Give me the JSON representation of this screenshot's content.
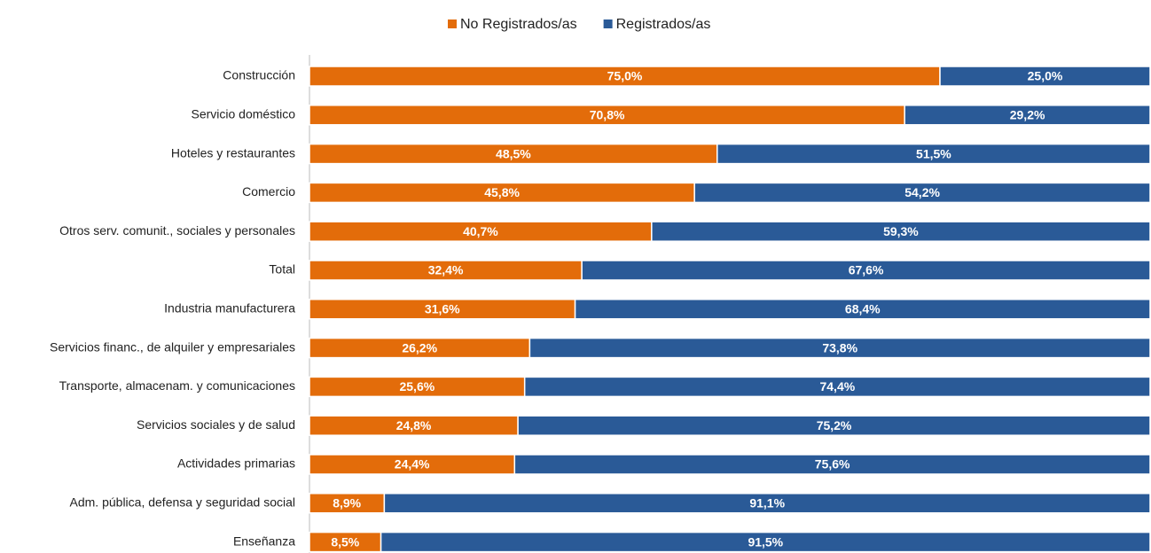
{
  "chart_data": {
    "type": "stacked-bar-horizontal",
    "categories": [
      "Construcción",
      "Servicio doméstico",
      "Hoteles y restaurantes",
      "Comercio",
      "Otros serv. comunit., sociales y personales",
      "Total",
      "Industria manufacturera",
      "Servicios financ., de alquiler y empresariales",
      "Transporte, almacenam. y comunicaciones",
      "Servicios sociales y de salud",
      "Actividades primarias",
      "Adm. pública, defensa y seguridad social",
      "Enseñanza"
    ],
    "series": [
      {
        "name": "No Registrados/as",
        "color": "#e36c0a",
        "values": [
          75.0,
          70.8,
          48.5,
          45.8,
          40.7,
          32.4,
          31.6,
          26.2,
          25.6,
          24.8,
          24.4,
          8.9,
          8.5
        ],
        "value_labels": [
          "75,0%",
          "70,8%",
          "48,5%",
          "45,8%",
          "40,7%",
          "32,4%",
          "31,6%",
          "26,2%",
          "25,6%",
          "24,8%",
          "24,4%",
          "8,9%",
          "8,5%"
        ]
      },
      {
        "name": "Registrados/as",
        "color": "#2a5a97",
        "values": [
          25.0,
          29.2,
          51.5,
          54.2,
          59.3,
          67.6,
          68.4,
          73.8,
          74.4,
          75.2,
          75.6,
          91.1,
          91.5
        ],
        "value_labels": [
          "25,0%",
          "29,2%",
          "51,5%",
          "54,2%",
          "59,3%",
          "67,6%",
          "68,4%",
          "73,8%",
          "74,4%",
          "75,2%",
          "75,6%",
          "91,1%",
          "91,5%"
        ]
      }
    ],
    "xlim": [
      0,
      100
    ],
    "legend": "top"
  }
}
